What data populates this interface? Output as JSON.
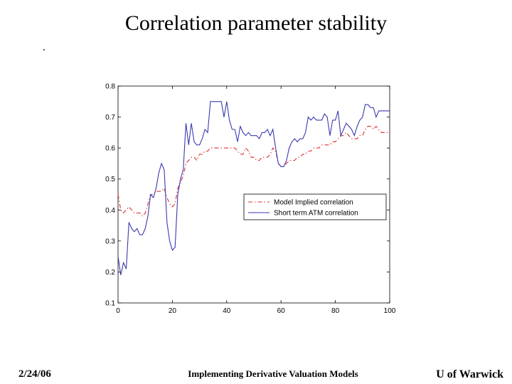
{
  "slide": {
    "title": "Correlation parameter stability",
    "bullet": "."
  },
  "footer": {
    "date": "2/24/06",
    "center": "Implementing Derivative Valuation Models",
    "right": "U of Warwick"
  },
  "chart_data": {
    "type": "line",
    "title": "",
    "xlabel": "",
    "ylabel": "",
    "xlim": [
      0,
      100
    ],
    "ylim": [
      0.1,
      0.8
    ],
    "xticks": [
      0,
      20,
      40,
      60,
      80,
      100
    ],
    "yticks": [
      0.1,
      0.2,
      0.3,
      0.4,
      0.5,
      0.6,
      0.7,
      0.8
    ],
    "grid": false,
    "legend_position": "lower-right",
    "series": [
      {
        "name": "Model Implied correlation",
        "style": "dash-dot",
        "color": "#e03030",
        "x": [
          0,
          1,
          2,
          3,
          4,
          5,
          6,
          7,
          8,
          9,
          10,
          11,
          12,
          13,
          14,
          15,
          16,
          17,
          18,
          19,
          20,
          21,
          22,
          23,
          24,
          25,
          26,
          27,
          28,
          29,
          30,
          31,
          32,
          33,
          34,
          35,
          36,
          37,
          38,
          39,
          40,
          41,
          42,
          43,
          44,
          45,
          46,
          47,
          48,
          49,
          50,
          51,
          52,
          53,
          54,
          55,
          56,
          57,
          58,
          59,
          60,
          61,
          62,
          63,
          64,
          65,
          66,
          67,
          68,
          69,
          70,
          71,
          72,
          73,
          74,
          75,
          76,
          77,
          78,
          79,
          80,
          81,
          82,
          83,
          84,
          85,
          86,
          87,
          88,
          89,
          90,
          91,
          92,
          93,
          94,
          95,
          96,
          97,
          98,
          99,
          100
        ],
        "y": [
          0.45,
          0.4,
          0.39,
          0.4,
          0.41,
          0.4,
          0.39,
          0.39,
          0.39,
          0.38,
          0.39,
          0.42,
          0.45,
          0.45,
          0.46,
          0.46,
          0.46,
          0.47,
          0.44,
          0.42,
          0.41,
          0.42,
          0.47,
          0.49,
          0.51,
          0.55,
          0.56,
          0.57,
          0.57,
          0.56,
          0.58,
          0.58,
          0.59,
          0.59,
          0.6,
          0.6,
          0.6,
          0.6,
          0.6,
          0.6,
          0.6,
          0.6,
          0.6,
          0.6,
          0.59,
          0.58,
          0.58,
          0.6,
          0.59,
          0.57,
          0.57,
          0.56,
          0.56,
          0.57,
          0.57,
          0.57,
          0.58,
          0.6,
          0.59,
          0.55,
          0.54,
          0.54,
          0.55,
          0.56,
          0.56,
          0.56,
          0.57,
          0.57,
          0.58,
          0.58,
          0.59,
          0.59,
          0.6,
          0.6,
          0.6,
          0.61,
          0.61,
          0.61,
          0.61,
          0.62,
          0.62,
          0.63,
          0.64,
          0.64,
          0.65,
          0.64,
          0.63,
          0.63,
          0.63,
          0.64,
          0.64,
          0.66,
          0.67,
          0.67,
          0.66,
          0.67,
          0.66,
          0.65,
          0.65,
          0.65,
          0.65
        ]
      },
      {
        "name": "Short term ATM correlation",
        "style": "solid",
        "color": "#3a3ab0",
        "x": [
          0,
          1,
          2,
          3,
          4,
          5,
          6,
          7,
          8,
          9,
          10,
          11,
          12,
          13,
          14,
          15,
          16,
          17,
          18,
          19,
          20,
          21,
          22,
          23,
          24,
          25,
          26,
          27,
          28,
          29,
          30,
          31,
          32,
          33,
          34,
          35,
          36,
          37,
          38,
          39,
          40,
          41,
          42,
          43,
          44,
          45,
          46,
          47,
          48,
          49,
          50,
          51,
          52,
          53,
          54,
          55,
          56,
          57,
          58,
          59,
          60,
          61,
          62,
          63,
          64,
          65,
          66,
          67,
          68,
          69,
          70,
          71,
          72,
          73,
          74,
          75,
          76,
          77,
          78,
          79,
          80,
          81,
          82,
          83,
          84,
          85,
          86,
          87,
          88,
          89,
          90,
          91,
          92,
          93,
          94,
          95,
          96,
          97,
          98,
          99,
          100
        ],
        "y": [
          0.25,
          0.19,
          0.23,
          0.21,
          0.36,
          0.34,
          0.33,
          0.34,
          0.32,
          0.32,
          0.34,
          0.38,
          0.45,
          0.44,
          0.47,
          0.52,
          0.55,
          0.53,
          0.36,
          0.3,
          0.27,
          0.28,
          0.45,
          0.5,
          0.53,
          0.68,
          0.61,
          0.68,
          0.62,
          0.61,
          0.61,
          0.63,
          0.66,
          0.65,
          0.75,
          0.75,
          0.75,
          0.75,
          0.75,
          0.7,
          0.75,
          0.69,
          0.66,
          0.66,
          0.62,
          0.67,
          0.65,
          0.64,
          0.65,
          0.64,
          0.64,
          0.64,
          0.63,
          0.65,
          0.65,
          0.66,
          0.64,
          0.66,
          0.6,
          0.55,
          0.54,
          0.54,
          0.56,
          0.6,
          0.62,
          0.63,
          0.62,
          0.63,
          0.63,
          0.65,
          0.7,
          0.69,
          0.7,
          0.69,
          0.69,
          0.69,
          0.71,
          0.7,
          0.64,
          0.69,
          0.69,
          0.72,
          0.64,
          0.66,
          0.68,
          0.67,
          0.66,
          0.64,
          0.67,
          0.69,
          0.7,
          0.74,
          0.74,
          0.73,
          0.73,
          0.7,
          0.72,
          0.72,
          0.72,
          0.72,
          0.72
        ]
      }
    ]
  }
}
